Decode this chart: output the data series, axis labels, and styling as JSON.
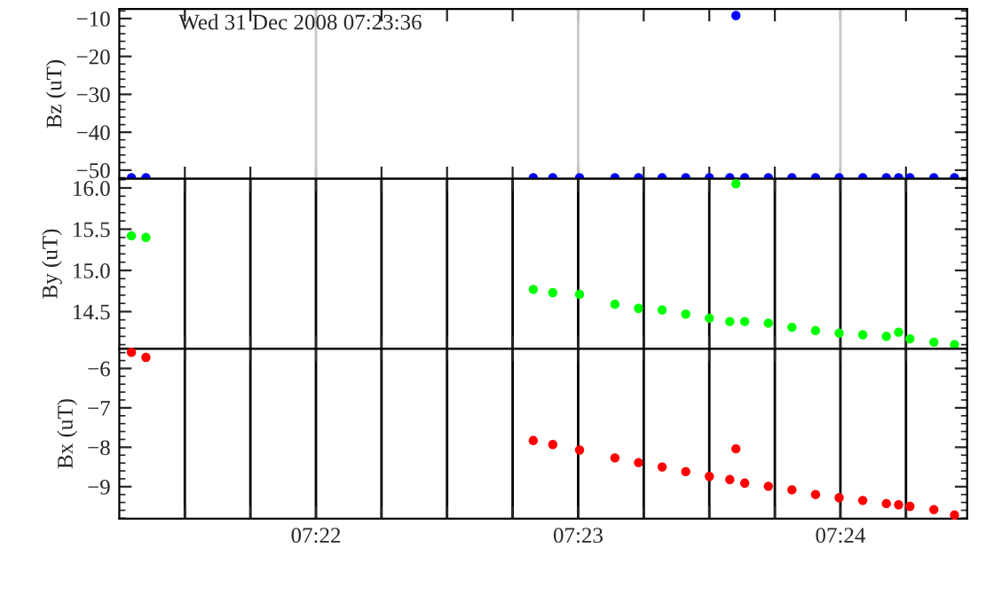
{
  "chart_data": [
    {
      "type": "scatter",
      "ylabel": "Bz (uT)",
      "annotations": [
        "Wed 31 Dec 2008 07:23:36"
      ],
      "marker": "circle",
      "grid": false,
      "tick_labels": "y",
      "x": [
        7.35494,
        7.35586,
        7.38048,
        7.38172,
        7.38342,
        7.38567,
        7.38717,
        7.38867,
        7.39017,
        7.39167,
        7.39297,
        7.39336,
        7.39392,
        7.39542,
        7.39692,
        7.39842,
        7.39992,
        7.40142,
        7.40292,
        7.4037,
        7.40442,
        7.40594,
        7.40725
      ],
      "series": [
        {
          "color": "#0000ff",
          "values": [
            -52,
            -52,
            -52,
            -52,
            -52,
            -52,
            -52,
            -52,
            -52,
            -52,
            -52,
            -9.2,
            -52,
            -52,
            -52,
            -52,
            -52,
            -52,
            -52,
            -52,
            -52,
            -52,
            -52
          ]
        }
      ],
      "xlim": [
        7.354167,
        7.408056
      ],
      "xticks": [
        {
          "value": 7.358333,
          "label": null
        },
        {
          "value": 7.3625,
          "label": null
        },
        {
          "value": 7.366667,
          "label": null
        },
        {
          "value": 7.370833,
          "label": null
        },
        {
          "value": 7.375,
          "label": null
        },
        {
          "value": 7.379167,
          "label": null
        },
        {
          "value": 7.383333,
          "label": null
        },
        {
          "value": 7.3875,
          "label": null
        },
        {
          "value": 7.391667,
          "label": null
        },
        {
          "value": 7.395833,
          "label": null
        },
        {
          "value": 7.4,
          "label": null
        },
        {
          "value": 7.404167,
          "label": null
        }
      ],
      "ylim": [
        -52.3,
        -7.5
      ],
      "yticks": [
        {
          "value": -10,
          "label": "−10"
        },
        {
          "value": -20,
          "label": "−20"
        },
        {
          "value": -30,
          "label": "−30"
        },
        {
          "value": -40,
          "label": "−40"
        },
        {
          "value": -50,
          "label": "−50"
        }
      ],
      "ref_lines": [
        {
          "axis": "x",
          "value": 7.366667,
          "label": null,
          "color": "#c8c8c8"
        },
        {
          "axis": "x",
          "value": 7.383333,
          "label": null,
          "color": "#c8c8c8"
        },
        {
          "axis": "x",
          "value": 7.4,
          "label": null,
          "color": "#c8c8c8"
        }
      ]
    },
    {
      "type": "scatter",
      "ylabel": "By (uT)",
      "marker": "circle",
      "grid": "x",
      "tick_labels": "y",
      "x": [
        7.35494,
        7.35586,
        7.38048,
        7.38172,
        7.38342,
        7.38567,
        7.38717,
        7.38867,
        7.39017,
        7.39167,
        7.39297,
        7.39336,
        7.39392,
        7.39542,
        7.39692,
        7.39842,
        7.39992,
        7.40142,
        7.40292,
        7.4037,
        7.40442,
        7.40594,
        7.40725
      ],
      "series": [
        {
          "color": "#00ff00",
          "values": [
            15.42,
            15.4,
            14.77,
            14.73,
            14.71,
            14.59,
            14.54,
            14.52,
            14.47,
            14.42,
            14.38,
            16.05,
            14.38,
            14.36,
            14.31,
            14.27,
            14.24,
            14.22,
            14.2,
            14.25,
            14.17,
            14.13,
            14.1
          ]
        }
      ],
      "xlim": [
        7.354167,
        7.408056
      ],
      "xticks": [
        {
          "value": 7.358333,
          "label": null
        },
        {
          "value": 7.3625,
          "label": null
        },
        {
          "value": 7.366667,
          "label": null
        },
        {
          "value": 7.370833,
          "label": null
        },
        {
          "value": 7.375,
          "label": null
        },
        {
          "value": 7.379167,
          "label": null
        },
        {
          "value": 7.383333,
          "label": null
        },
        {
          "value": 7.3875,
          "label": null
        },
        {
          "value": 7.391667,
          "label": null
        },
        {
          "value": 7.395833,
          "label": null
        },
        {
          "value": 7.4,
          "label": null
        },
        {
          "value": 7.404167,
          "label": null
        }
      ],
      "ylim": [
        14.05,
        16.11
      ],
      "yticks": [
        {
          "value": 14.5,
          "label": "14.5"
        },
        {
          "value": 15.0,
          "label": "15.0"
        },
        {
          "value": 15.5,
          "label": "15.5"
        },
        {
          "value": 16.0,
          "label": "16.0"
        }
      ]
    },
    {
      "type": "scatter",
      "ylabel": "Bx (uT)",
      "marker": "circle",
      "grid": "x",
      "x": [
        7.35494,
        7.35586,
        7.38048,
        7.38172,
        7.38342,
        7.38567,
        7.38717,
        7.38867,
        7.39017,
        7.39167,
        7.39297,
        7.39336,
        7.39392,
        7.39542,
        7.39692,
        7.39842,
        7.39992,
        7.40142,
        7.40292,
        7.4037,
        7.40442,
        7.40594,
        7.40725
      ],
      "series": [
        {
          "color": "#ff0000",
          "values": [
            -5.59,
            -5.72,
            -7.83,
            -7.93,
            -8.07,
            -8.27,
            -8.39,
            -8.5,
            -8.62,
            -8.74,
            -8.82,
            -8.04,
            -8.91,
            -8.99,
            -9.08,
            -9.2,
            -9.28,
            -9.35,
            -9.43,
            -9.46,
            -9.5,
            -9.58,
            -9.72
          ]
        }
      ],
      "xlim": [
        7.354167,
        7.408056
      ],
      "xticks": [
        {
          "value": 7.358333,
          "label": null
        },
        {
          "value": 7.3625,
          "label": null
        },
        {
          "value": 7.366667,
          "label": "07:22"
        },
        {
          "value": 7.370833,
          "label": null
        },
        {
          "value": 7.375,
          "label": null
        },
        {
          "value": 7.379167,
          "label": null
        },
        {
          "value": 7.383333,
          "label": "07:23"
        },
        {
          "value": 7.3875,
          "label": null
        },
        {
          "value": 7.391667,
          "label": null
        },
        {
          "value": 7.395833,
          "label": null
        },
        {
          "value": 7.4,
          "label": "07:24"
        },
        {
          "value": 7.404167,
          "label": null
        }
      ],
      "ylim": [
        -9.81,
        -5.5
      ],
      "yticks": [
        {
          "value": -6,
          "label": "−6"
        },
        {
          "value": -7,
          "label": "−7"
        },
        {
          "value": -8,
          "label": "−8"
        },
        {
          "value": -9,
          "label": "−9"
        }
      ]
    }
  ]
}
